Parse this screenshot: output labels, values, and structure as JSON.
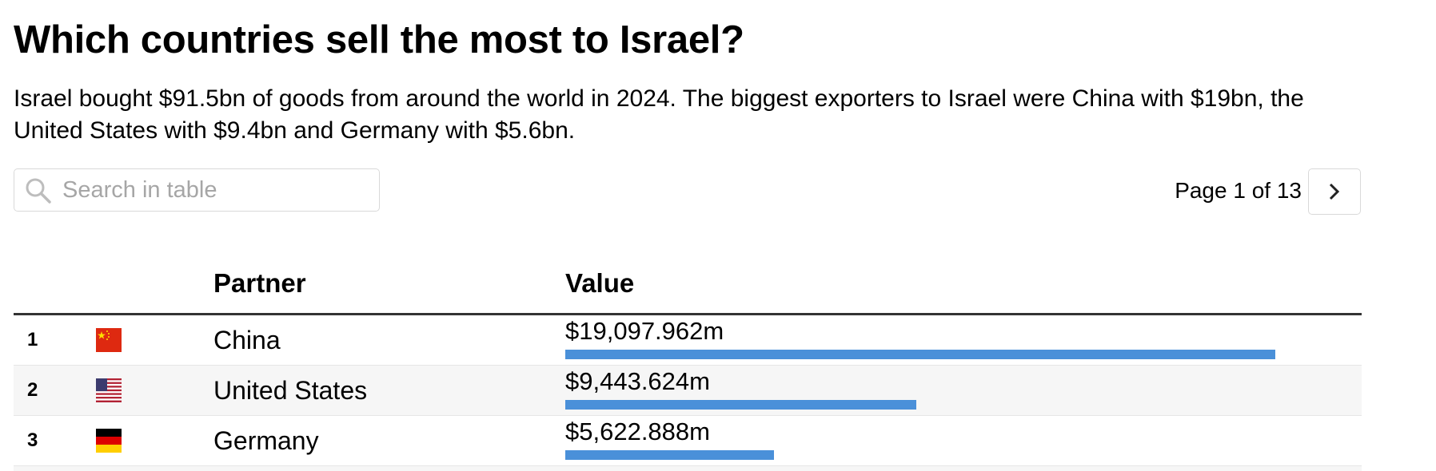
{
  "title": "Which countries sell the most to Israel?",
  "subtitle": "Israel bought $91.5bn of goods from around the world in 2024. The biggest exporters to Israel were China with $19bn, the United States with $9.4bn and Germany with $5.6bn.",
  "search": {
    "placeholder": "Search in table",
    "value": "",
    "icon": "search-icon"
  },
  "pagination": {
    "label": "Page 1 of 13",
    "current_page": 1,
    "total_pages": 13,
    "next_icon": "chevron-right-icon"
  },
  "table": {
    "columns": [
      "",
      "",
      "Partner",
      "Value"
    ],
    "bar_color": "#4a90d9",
    "bar_max_value": 19097.962,
    "rows": [
      {
        "rank": "1",
        "flag": "china-flag-icon",
        "partner": "China",
        "value_label": "$19,097.962m",
        "value": 19097.962
      },
      {
        "rank": "2",
        "flag": "us-flag-icon",
        "partner": "United States",
        "value_label": "$9,443.624m",
        "value": 9443.624
      },
      {
        "rank": "3",
        "flag": "germany-flag-icon",
        "partner": "Germany",
        "value_label": "$5,622.888m",
        "value": 5622.888
      }
    ]
  }
}
